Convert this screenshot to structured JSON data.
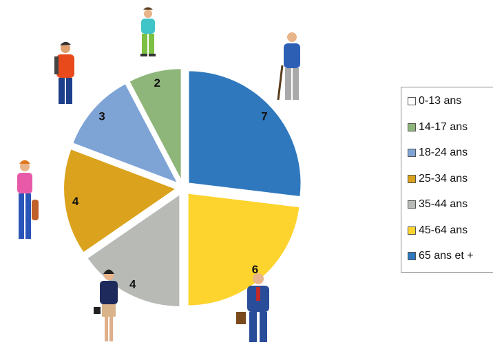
{
  "chart_data": {
    "type": "pie",
    "exploded": true,
    "categories": [
      "0-13 ans",
      "14-17 ans",
      "18-24 ans",
      "25-34 ans",
      "35-44 ans",
      "45-64 ans",
      "65 ans et +"
    ],
    "values": [
      0,
      2,
      3,
      4,
      4,
      6,
      7
    ],
    "data_labels": [
      "",
      "2",
      "3",
      "4",
      "4",
      "6",
      "7"
    ],
    "colors": [
      "#ffffff",
      "#8fb67a",
      "#7ea4d6",
      "#dba31d",
      "#b8bab6",
      "#fdd32e",
      "#2f78bd"
    ],
    "legend_position": "right",
    "decorations": [
      "person-icon",
      "person-icon",
      "person-icon",
      "person-icon",
      "person-icon",
      "person-icon"
    ]
  }
}
